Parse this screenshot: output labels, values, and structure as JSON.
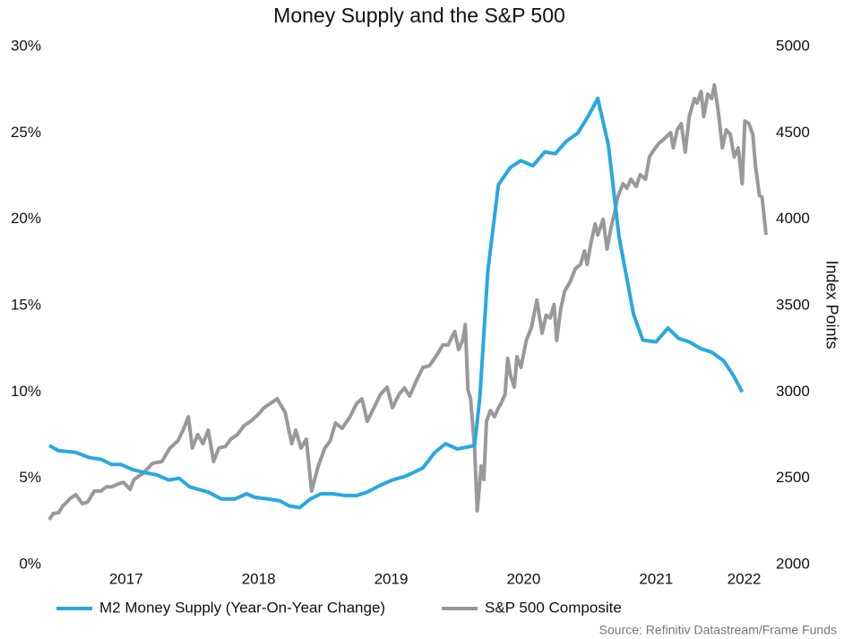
{
  "chart_data": {
    "type": "line",
    "title": "Money Supply and the S&P 500",
    "y2_label": "Index Points",
    "source": "Source: Refinitiv Datastream/Frame Funds",
    "legend": "bottom",
    "grid": false,
    "xlim": [
      2016.92,
      2022.33
    ],
    "xticks": [
      2017,
      2018,
      2019,
      2020,
      2021,
      2022
    ],
    "ylim": [
      0,
      30
    ],
    "yticks": [
      {
        "value": 0,
        "label": "0%"
      },
      {
        "value": 5,
        "label": "5%"
      },
      {
        "value": 10,
        "label": "10%"
      },
      {
        "value": 15,
        "label": "15%"
      },
      {
        "value": 20,
        "label": "20%"
      },
      {
        "value": 25,
        "label": "25%"
      },
      {
        "value": 30,
        "label": "30%"
      }
    ],
    "y2lim": [
      2000,
      5000
    ],
    "y2ticks": [
      2000,
      2500,
      3000,
      3500,
      4000,
      4500,
      5000
    ],
    "series": [
      {
        "name": "M2 Money Supply (Year-On-Year Change)",
        "color": "#29a8e0",
        "axis": "y",
        "x": [
          2016.92,
          2016.99,
          2017.12,
          2017.22,
          2017.31,
          2017.39,
          2017.46,
          2017.55,
          2017.66,
          2017.73,
          2017.82,
          2017.9,
          2017.98,
          2018.12,
          2018.22,
          2018.32,
          2018.41,
          2018.47,
          2018.57,
          2018.66,
          2018.73,
          2018.81,
          2018.89,
          2018.97,
          2019.06,
          2019.15,
          2019.24,
          2019.32,
          2019.42,
          2019.51,
          2019.6,
          2019.66,
          2019.74,
          2019.83,
          2019.91,
          2020.0,
          2020.07,
          2020.13,
          2020.17,
          2020.23,
          2020.31,
          2020.4,
          2020.48,
          2020.57,
          2020.66,
          2020.74,
          2020.82,
          2020.91,
          2020.99,
          2021.06,
          2021.14,
          2021.22,
          2021.33,
          2021.4,
          2021.5,
          2021.59,
          2021.67,
          2021.75,
          2021.84,
          2021.92,
          2022.01,
          2022.08,
          2022.15
        ],
        "values": [
          6.9,
          6.6,
          6.5,
          6.2,
          6.1,
          5.8,
          5.8,
          5.5,
          5.3,
          5.2,
          4.9,
          5.0,
          4.5,
          4.2,
          3.8,
          3.8,
          4.1,
          3.9,
          3.8,
          3.7,
          3.4,
          3.3,
          3.8,
          4.1,
          4.1,
          4.0,
          4.0,
          4.2,
          4.6,
          4.9,
          5.1,
          5.3,
          5.6,
          6.5,
          7.0,
          6.7,
          6.8,
          6.9,
          9.7,
          17.0,
          22.0,
          23.0,
          23.4,
          23.1,
          23.9,
          23.8,
          24.5,
          25.0,
          26.0,
          27.0,
          24.3,
          19.0,
          14.5,
          13.0,
          12.9,
          13.7,
          13.1,
          12.9,
          12.5,
          12.3,
          11.8,
          11.0,
          10.0
        ]
      },
      {
        "name": "S&P 500 Composite",
        "color": "#999999",
        "axis": "y2",
        "x": [
          2016.92,
          2016.95,
          2016.99,
          2017.02,
          2017.08,
          2017.12,
          2017.17,
          2017.21,
          2017.26,
          2017.31,
          2017.35,
          2017.39,
          2017.44,
          2017.48,
          2017.53,
          2017.56,
          2017.63,
          2017.7,
          2017.77,
          2017.83,
          2017.89,
          2017.93,
          2017.97,
          2018.0,
          2018.04,
          2018.08,
          2018.12,
          2018.16,
          2018.2,
          2018.25,
          2018.29,
          2018.34,
          2018.39,
          2018.44,
          2018.5,
          2018.54,
          2018.59,
          2018.64,
          2018.7,
          2018.75,
          2018.78,
          2018.82,
          2018.86,
          2018.9,
          2018.95,
          2019.0,
          2019.04,
          2019.08,
          2019.13,
          2019.19,
          2019.24,
          2019.28,
          2019.32,
          2019.37,
          2019.42,
          2019.47,
          2019.51,
          2019.56,
          2019.6,
          2019.64,
          2019.69,
          2019.74,
          2019.79,
          2019.85,
          2019.89,
          2019.93,
          2019.98,
          2020.01,
          2020.04,
          2020.06,
          2020.08,
          2020.1,
          2020.13,
          2020.15,
          2020.18,
          2020.2,
          2020.22,
          2020.25,
          2020.28,
          2020.31,
          2020.33,
          2020.36,
          2020.38,
          2020.4,
          2020.43,
          2020.45,
          2020.48,
          2020.52,
          2020.56,
          2020.6,
          2020.64,
          2020.67,
          2020.7,
          2020.73,
          2020.75,
          2020.78,
          2020.81,
          2020.85,
          2020.89,
          2020.93,
          2020.96,
          2020.98,
          2021.01,
          2021.04,
          2021.06,
          2021.1,
          2021.13,
          2021.16,
          2021.19,
          2021.21,
          2021.25,
          2021.28,
          2021.31,
          2021.35,
          2021.38,
          2021.42,
          2021.45,
          2021.48,
          2021.52,
          2021.56,
          2021.61,
          2021.63,
          2021.66,
          2021.69,
          2021.72,
          2021.75,
          2021.79,
          2021.81,
          2021.84,
          2021.86,
          2021.89,
          2021.92,
          2021.94,
          2021.97,
          2022.0,
          2022.03,
          2022.06,
          2022.09,
          2022.12,
          2022.15,
          2022.17,
          2022.2,
          2022.23,
          2022.25,
          2022.28,
          2022.3,
          2022.33
        ],
        "values": [
          2260,
          2296,
          2300,
          2337,
          2384,
          2405,
          2353,
          2363,
          2426,
          2426,
          2450,
          2450,
          2467,
          2477,
          2436,
          2493,
          2530,
          2587,
          2597,
          2675,
          2716,
          2779,
          2856,
          2675,
          2753,
          2700,
          2779,
          2597,
          2675,
          2685,
          2727,
          2753,
          2805,
          2830,
          2872,
          2908,
          2934,
          2960,
          2882,
          2700,
          2779,
          2675,
          2727,
          2426,
          2571,
          2675,
          2716,
          2820,
          2789,
          2856,
          2934,
          2960,
          2830,
          2908,
          2986,
          3028,
          2908,
          2986,
          3023,
          2976,
          3064,
          3142,
          3152,
          3220,
          3272,
          3272,
          3350,
          3246,
          3298,
          3391,
          3012,
          2960,
          2675,
          2312,
          2571,
          2493,
          2830,
          2893,
          2856,
          2908,
          2934,
          2986,
          3194,
          3100,
          3028,
          3204,
          3142,
          3298,
          3376,
          3532,
          3340,
          3444,
          3428,
          3506,
          3298,
          3480,
          3584,
          3636,
          3713,
          3739,
          3817,
          3739,
          3869,
          3973,
          3910,
          4000,
          3827,
          3952,
          4050,
          4128,
          4206,
          4180,
          4232,
          4190,
          4258,
          4232,
          4362,
          4398,
          4439,
          4465,
          4502,
          4414,
          4518,
          4554,
          4388,
          4595,
          4699,
          4673,
          4740,
          4595,
          4725,
          4699,
          4777,
          4621,
          4414,
          4518,
          4492,
          4362,
          4414,
          4206,
          4569,
          4554,
          4492,
          4310,
          4138,
          4128,
          3910
        ]
      }
    ]
  }
}
